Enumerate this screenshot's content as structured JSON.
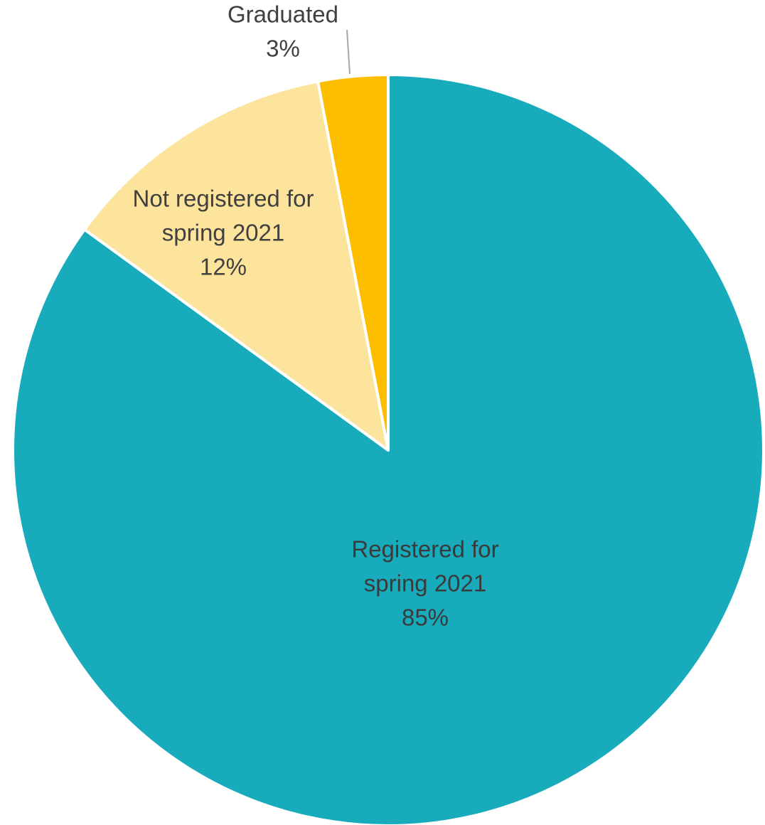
{
  "chart_data": {
    "type": "pie",
    "start": "top",
    "direction": "clockwise",
    "slices": [
      {
        "label_lines": [
          "Registered for",
          "spring 2021"
        ],
        "percent_label": "85%",
        "value": 85,
        "color": "#17ABBC"
      },
      {
        "label_lines": [
          "Not registered for",
          "spring 2021"
        ],
        "percent_label": "12%",
        "value": 12,
        "color": "#FDE49C"
      },
      {
        "label_lines": [
          "Graduated"
        ],
        "percent_label": "3%",
        "value": 3,
        "color": "#FDBE00"
      }
    ],
    "title": "",
    "legend": "none"
  }
}
